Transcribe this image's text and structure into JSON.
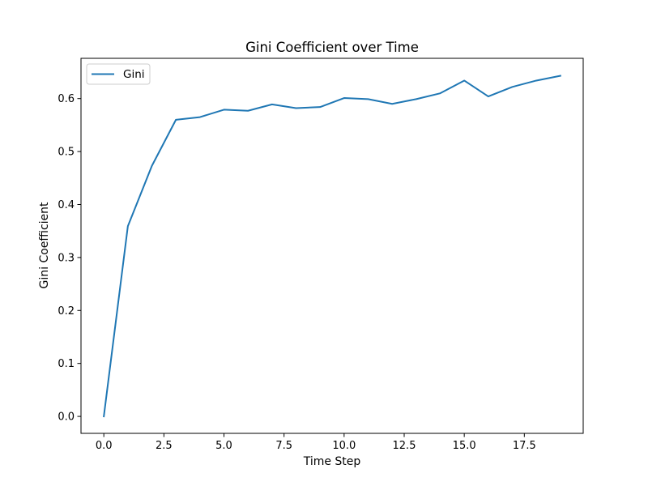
{
  "chart_data": {
    "type": "line",
    "title": "Gini Coefficient over Time",
    "xlabel": "Time Step",
    "ylabel": "Gini Coefficient",
    "xlim": [
      -0.95,
      19.95
    ],
    "ylim": [
      -0.032,
      0.676
    ],
    "xticks": [
      0,
      2.5,
      5,
      7.5,
      10,
      12.5,
      15,
      17.5
    ],
    "xtick_labels": [
      "0.0",
      "2.5",
      "5.0",
      "7.5",
      "10.0",
      "12.5",
      "15.0",
      "17.5"
    ],
    "yticks": [
      0,
      0.1,
      0.2,
      0.3,
      0.4,
      0.5,
      0.6
    ],
    "ytick_labels": [
      "0.0",
      "0.1",
      "0.2",
      "0.3",
      "0.4",
      "0.5",
      "0.6"
    ],
    "grid": false,
    "legend_position": "top-left",
    "series": [
      {
        "name": "Gini",
        "color": "#1f77b4",
        "x": [
          0,
          1,
          2,
          3,
          4,
          5,
          6,
          7,
          8,
          9,
          10,
          11,
          12,
          13,
          14,
          15,
          16,
          17,
          18,
          19
        ],
        "y": [
          0.0,
          0.359,
          0.473,
          0.56,
          0.565,
          0.579,
          0.577,
          0.589,
          0.582,
          0.584,
          0.601,
          0.599,
          0.59,
          0.599,
          0.61,
          0.634,
          0.604,
          0.622,
          0.634,
          0.643
        ]
      }
    ]
  }
}
